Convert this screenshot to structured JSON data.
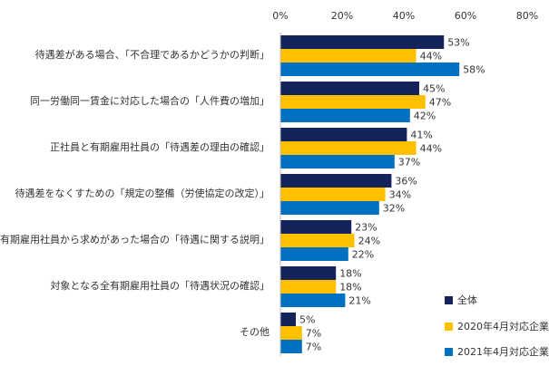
{
  "chart_data": {
    "type": "bar",
    "orientation": "horizontal",
    "categories": [
      "待遇差がある場合、「不合理であるかどうかの判断」",
      "同一労働同一賃金に対応した場合の「人件費の増加」",
      "正社員と有期雇用社員の「待遇差の理由の確認」",
      "待遇差をなくすための「規定の整備（労使協定の改定）」",
      "有期雇用社員から求めがあった場合の「待遇に関する説明」",
      "対象となる全有期雇用社員の「待遇状況の確認」",
      "その他"
    ],
    "series": [
      {
        "name": "全体",
        "color": "#14235A",
        "values": [
          53,
          45,
          41,
          36,
          23,
          18,
          5
        ]
      },
      {
        "name": "2020年4月対応企業",
        "color": "#FFC000",
        "values": [
          44,
          47,
          44,
          34,
          24,
          18,
          7
        ]
      },
      {
        "name": "2021年4月対応企業",
        "color": "#0070C0",
        "values": [
          58,
          42,
          37,
          32,
          22,
          21,
          7
        ]
      }
    ],
    "value_suffix": "%",
    "xlim": [
      0,
      80
    ],
    "xticks": [
      "0%",
      "20%",
      "40%",
      "60%",
      "80%"
    ],
    "xtick_values": [
      0,
      20,
      40,
      60,
      80
    ],
    "grid": false,
    "legend_position": "bottom-right"
  }
}
